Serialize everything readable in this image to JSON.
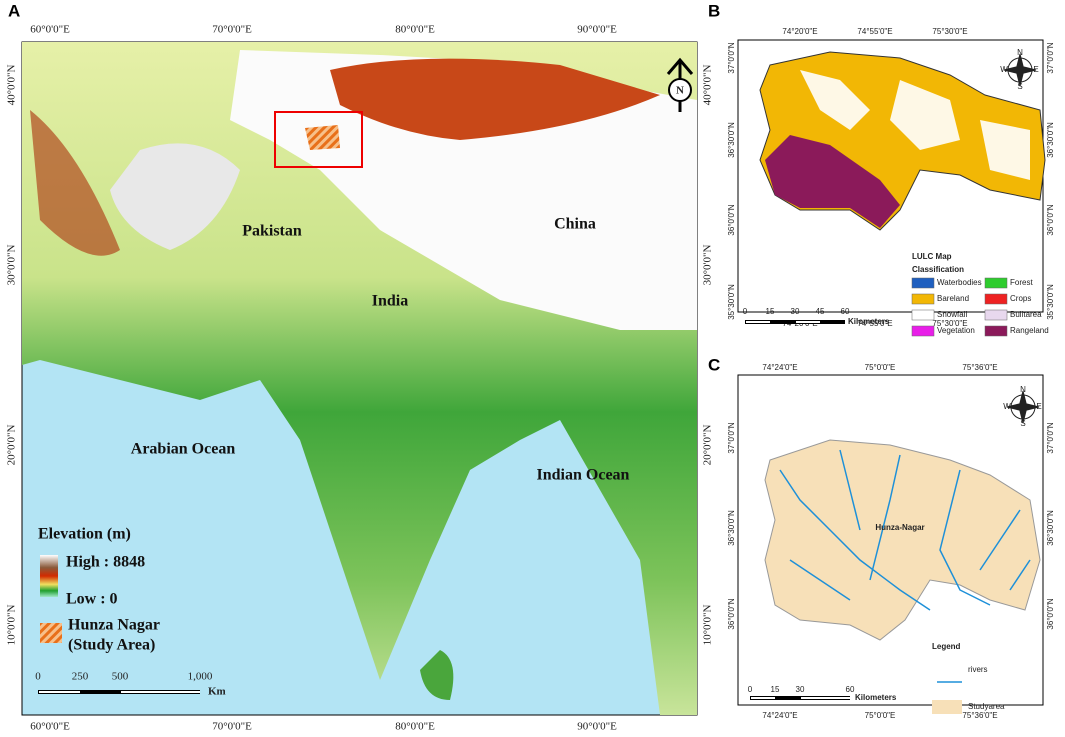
{
  "panels": [
    {
      "label": "A",
      "lon_ticks": [
        "60°0'0\"E",
        "70°0'0\"E",
        "80°0'0\"E",
        "90°0'0\"E"
      ],
      "lat_ticks": [
        "40°0'0\"N",
        "30°0'0\"N",
        "20°0'0\"N",
        "10°0'0\"N"
      ],
      "places": [
        "Pakistan",
        "China",
        "India",
        "Arabian Ocean",
        "Indian Ocean"
      ],
      "north": "N",
      "legend": {
        "title": "Elevation (m)",
        "high": "High : 8848",
        "low": "Low : 0",
        "study_area": [
          "Hunza Nagar",
          "(Study Area)"
        ]
      },
      "scale": {
        "ticks": [
          "0",
          "250",
          "500",
          "1,000"
        ],
        "unit": "Km"
      }
    },
    {
      "label": "B",
      "lon_ticks": [
        "74°20'0\"E",
        "74°55'0\"E",
        "75°30'0\"E"
      ],
      "lat_ticks": [
        "37°0'0\"N",
        "36°30'0\"N",
        "36°0'0\"N",
        "35°30'0\"N"
      ],
      "compass": [
        "N",
        "E",
        "S",
        "W"
      ],
      "legend": {
        "title": "LULC Map",
        "subtitle": "Classification",
        "classes": [
          {
            "name": "Waterbodies",
            "color": "#1f5fbf"
          },
          {
            "name": "Bareland",
            "color": "#f2b705"
          },
          {
            "name": "Snowfall",
            "color": "#ffffff"
          },
          {
            "name": "Vegetation",
            "color": "#e81ee8"
          },
          {
            "name": "Forest",
            "color": "#2ecc2e"
          },
          {
            "name": "Crops",
            "color": "#ee2222"
          },
          {
            "name": "Builtarea",
            "color": "#e8d8ee"
          },
          {
            "name": "Rangeland",
            "color": "#8b1a5a"
          }
        ]
      },
      "scale": {
        "ticks": [
          "0",
          "15",
          "30",
          "45",
          "60"
        ],
        "unit": "Kilometers"
      }
    },
    {
      "label": "C",
      "lon_ticks": [
        "74°24'0\"E",
        "75°0'0\"E",
        "75°36'0\"E"
      ],
      "lat_ticks": [
        "37°0'0\"N",
        "36°30'0\"N",
        "36°0'0\"N"
      ],
      "compass": [
        "N",
        "E",
        "S",
        "W"
      ],
      "region": "Hunza-Nagar",
      "legend": {
        "title": "Legend",
        "items": [
          "rivers",
          "Studyarea"
        ]
      },
      "scale": {
        "ticks": [
          "0",
          "15",
          "30",
          "60"
        ],
        "unit": "Kilometers"
      }
    }
  ]
}
